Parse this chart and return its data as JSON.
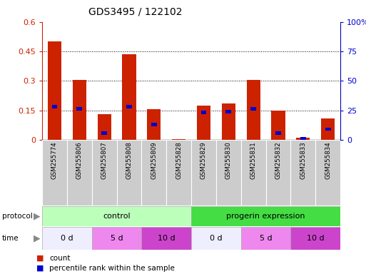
{
  "title": "GDS3495 / 122102",
  "samples": [
    "GSM255774",
    "GSM255806",
    "GSM255807",
    "GSM255808",
    "GSM255809",
    "GSM255828",
    "GSM255829",
    "GSM255830",
    "GSM255831",
    "GSM255832",
    "GSM255833",
    "GSM255834"
  ],
  "red_values": [
    0.5,
    0.305,
    0.13,
    0.435,
    0.155,
    0.002,
    0.175,
    0.185,
    0.305,
    0.15,
    0.01,
    0.11
  ],
  "blue_pct": [
    28.0,
    26.5,
    5.5,
    28.0,
    13.0,
    0.0,
    23.0,
    24.0,
    26.5,
    5.5,
    1.0,
    9.0
  ],
  "ylim_left": [
    0,
    0.6
  ],
  "ylim_right": [
    0,
    100
  ],
  "yticks_left": [
    0,
    0.15,
    0.3,
    0.45,
    0.6
  ],
  "ytick_labels_left": [
    "0",
    "0.15",
    "0.3",
    "0.45",
    "0.6"
  ],
  "yticks_right": [
    0,
    25,
    50,
    75,
    100
  ],
  "ytick_labels_right": [
    "0",
    "25",
    "50",
    "75",
    "100%"
  ],
  "red_color": "#cc2200",
  "blue_color": "#0000cc",
  "bar_width": 0.55,
  "protocol_light_green": "#bbffbb",
  "protocol_dark_green": "#44dd44",
  "time_color_0d": "#eeeeff",
  "time_color_5d": "#ee88ee",
  "time_color_10d": "#cc44cc",
  "time_groups": [
    {
      "label": "0 d",
      "start": 0,
      "end": 2,
      "color_key": "time_color_0d"
    },
    {
      "label": "5 d",
      "start": 2,
      "end": 4,
      "color_key": "time_color_5d"
    },
    {
      "label": "10 d",
      "start": 4,
      "end": 6,
      "color_key": "time_color_10d"
    },
    {
      "label": "0 d",
      "start": 6,
      "end": 8,
      "color_key": "time_color_0d"
    },
    {
      "label": "5 d",
      "start": 8,
      "end": 10,
      "color_key": "time_color_5d"
    },
    {
      "label": "10 d",
      "start": 10,
      "end": 12,
      "color_key": "time_color_10d"
    }
  ],
  "sample_bg_color": "#cccccc",
  "legend_count_label": "count",
  "legend_pct_label": "percentile rank within the sample",
  "background_color": "#ffffff"
}
